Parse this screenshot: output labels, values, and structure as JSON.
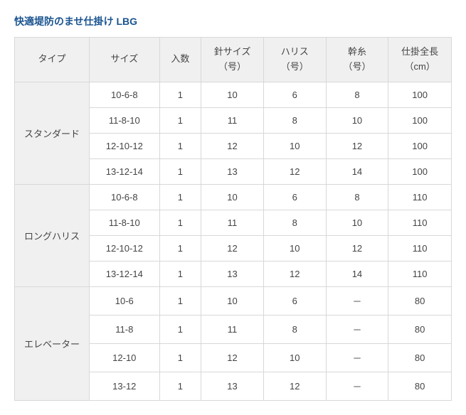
{
  "title": "快適堤防のませ仕掛け LBG",
  "columns": [
    {
      "key": "type",
      "label": "タイプ"
    },
    {
      "key": "size",
      "label": "サイズ"
    },
    {
      "key": "qty",
      "label": "入数"
    },
    {
      "key": "hook",
      "label": "針サイズ\n（号）"
    },
    {
      "key": "harris",
      "label": "ハリス\n（号）"
    },
    {
      "key": "trunk",
      "label": "幹糸\n（号）"
    },
    {
      "key": "len",
      "label": "仕掛全長\n（cm）"
    }
  ],
  "groups": [
    {
      "type": "スタンダード",
      "rows": [
        {
          "size": "10-6-8",
          "qty": "1",
          "hook": "10",
          "harris": "6",
          "trunk": "8",
          "len": "100"
        },
        {
          "size": "11-8-10",
          "qty": "1",
          "hook": "11",
          "harris": "8",
          "trunk": "10",
          "len": "100"
        },
        {
          "size": "12-10-12",
          "qty": "1",
          "hook": "12",
          "harris": "10",
          "trunk": "12",
          "len": "100"
        },
        {
          "size": "13-12-14",
          "qty": "1",
          "hook": "13",
          "harris": "12",
          "trunk": "14",
          "len": "100"
        }
      ]
    },
    {
      "type": "ロングハリス",
      "rows": [
        {
          "size": "10-6-8",
          "qty": "1",
          "hook": "10",
          "harris": "6",
          "trunk": "8",
          "len": "110"
        },
        {
          "size": "11-8-10",
          "qty": "1",
          "hook": "11",
          "harris": "8",
          "trunk": "10",
          "len": "110"
        },
        {
          "size": "12-10-12",
          "qty": "1",
          "hook": "12",
          "harris": "10",
          "trunk": "12",
          "len": "110"
        },
        {
          "size": "13-12-14",
          "qty": "1",
          "hook": "13",
          "harris": "12",
          "trunk": "14",
          "len": "110"
        }
      ]
    },
    {
      "type": "エレベーター",
      "rows": [
        {
          "size": "10-6",
          "qty": "1",
          "hook": "10",
          "harris": "6",
          "trunk": "－",
          "len": "80"
        },
        {
          "size": "11-8",
          "qty": "1",
          "hook": "11",
          "harris": "8",
          "trunk": "－",
          "len": "80"
        },
        {
          "size": "12-10",
          "qty": "1",
          "hook": "12",
          "harris": "10",
          "trunk": "－",
          "len": "80"
        },
        {
          "size": "13-12",
          "qty": "1",
          "hook": "13",
          "harris": "12",
          "trunk": "－",
          "len": "80"
        }
      ]
    }
  ],
  "style": {
    "title_color": "#1a5490",
    "border_color": "#d8d8d8",
    "header_bg": "#f0f0f0",
    "text_color": "#444444"
  }
}
